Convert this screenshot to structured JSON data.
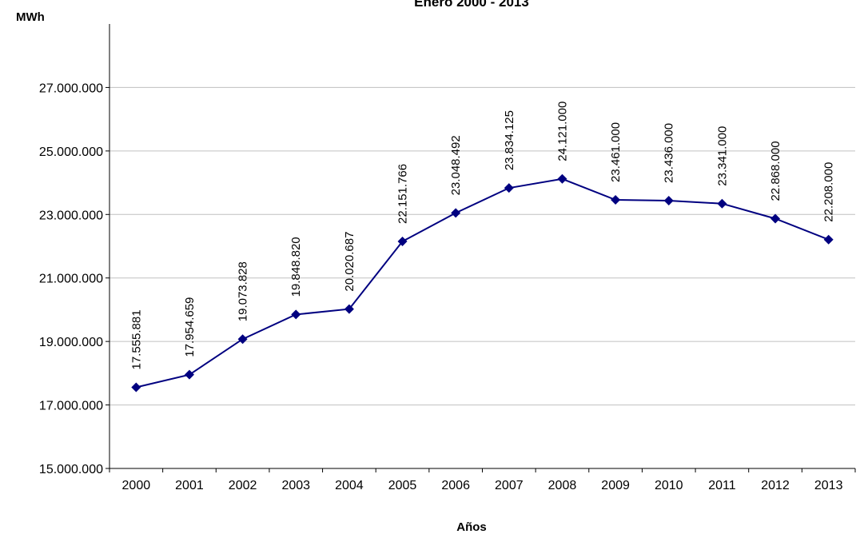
{
  "chart_data": {
    "type": "line",
    "title": "Enero 2000 - 2013",
    "xlabel": "Años",
    "ylabel": "MWh",
    "categories": [
      "2000",
      "2001",
      "2002",
      "2003",
      "2004",
      "2005",
      "2006",
      "2007",
      "2008",
      "2009",
      "2010",
      "2011",
      "2012",
      "2013"
    ],
    "series": [
      {
        "values": [
          17555881,
          17954659,
          19073828,
          19848820,
          20020687,
          22151766,
          23048492,
          23834125,
          24121000,
          23461000,
          23436000,
          23341000,
          22868000,
          22208000
        ],
        "labels": [
          "17.555.881",
          "17.954.659",
          "19.073.828",
          "19.848.820",
          "20.020.687",
          "22.151.766",
          "23.048.492",
          "23.834.125",
          "24.121.000",
          "23.461.000",
          "23.436.000",
          "23.341.000",
          "22.868.000",
          "22.208.000"
        ],
        "color": "#000080"
      }
    ],
    "ylim": [
      15000000,
      29000000
    ],
    "yticks": [
      15000000,
      17000000,
      19000000,
      21000000,
      23000000,
      25000000,
      27000000
    ],
    "ytick_labels": [
      "15.000.000",
      "17.000.000",
      "19.000.000",
      "21.000.000",
      "23.000.000",
      "25.000.000",
      "27.000.000"
    ],
    "grid": true,
    "gridline_color": "#c0c0c0",
    "legend": "none"
  }
}
